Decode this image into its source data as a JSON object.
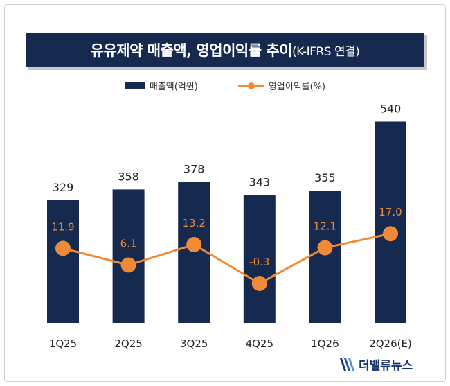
{
  "chart_data": {
    "type": "bar",
    "title": "유유제약 매출액, 영업이익률 추이",
    "subtitle": "(K-IFRS 연결)",
    "categories": [
      "1Q25",
      "2Q25",
      "3Q25",
      "4Q25",
      "1Q26",
      "2Q26(E)"
    ],
    "series": [
      {
        "name": "매출액(억원)",
        "type": "bar",
        "color": "#16294e",
        "values": [
          329,
          358,
          378,
          343,
          355,
          540
        ],
        "labels": [
          "329",
          "358",
          "378",
          "343",
          "355",
          "540"
        ]
      },
      {
        "name": "영업이익률(%)",
        "type": "line",
        "color": "#f08a36",
        "values": [
          11.9,
          6.1,
          13.2,
          -0.3,
          12.1,
          17.0
        ],
        "labels": [
          "11.9",
          "6.1",
          "13.2",
          "-0.3",
          "12.1",
          "17.0"
        ]
      }
    ],
    "legend": "top-center",
    "grid": false
  },
  "branding": {
    "logo_text": "더밸류뉴스",
    "logo_icon": "the-value-news-logo-icon"
  }
}
